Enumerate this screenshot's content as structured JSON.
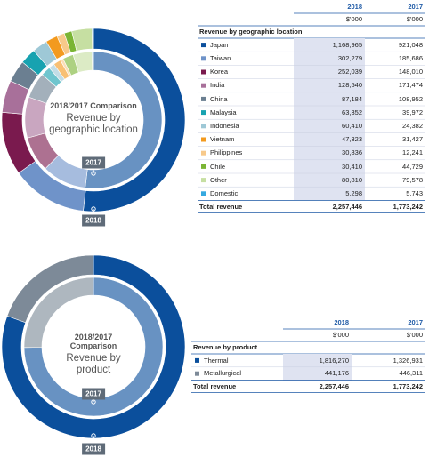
{
  "chart_data": [
    {
      "type": "donut",
      "title": "2018/2017 Comparison",
      "subtitle": "Revenue by geographic location",
      "table_heading": "Revenue by geographic location",
      "total_label": "Total revenue",
      "categories": [
        "Japan",
        "Taiwan",
        "Korea",
        "India",
        "China",
        "Malaysia",
        "Indonesia",
        "Vietnam",
        "Philippines",
        "Chile",
        "Other",
        "Domestic"
      ],
      "colors": [
        "#0b4f9c",
        "#6f93c9",
        "#7a1a4e",
        "#a8709a",
        "#6b7f91",
        "#17a2b0",
        "#9ec8d6",
        "#f39a1e",
        "#f7c98a",
        "#7ab534",
        "#c6dfa2",
        "#35a9e0"
      ],
      "series": [
        {
          "name": "2018",
          "unit": "$'000",
          "total": "2,257,446",
          "values": [
            1168965,
            302279,
            252039,
            128540,
            87184,
            63352,
            60410,
            47323,
            30836,
            30410,
            80810,
            5298
          ],
          "value_labels": [
            "1,168,965",
            "302,279",
            "252,039",
            "128,540",
            "87,184",
            "63,352",
            "60,410",
            "47,323",
            "30,836",
            "30,410",
            "80,810",
            "5,298"
          ]
        },
        {
          "name": "2017",
          "unit": "$'000",
          "total": "1,773,242",
          "values": [
            921048,
            185686,
            148010,
            171474,
            108952,
            39972,
            24382,
            31427,
            12241,
            44729,
            79578,
            5743
          ],
          "value_labels": [
            "921,048",
            "185,686",
            "148,010",
            "171,474",
            "108,952",
            "39,972",
            "24,382",
            "31,427",
            "12,241",
            "44,729",
            "79,578",
            "5,743"
          ]
        }
      ]
    },
    {
      "type": "donut",
      "title": "2018/2017 Comparison",
      "subtitle": "Revenue by product",
      "table_heading": "Revenue by product",
      "total_label": "Total revenue",
      "categories": [
        "Thermal",
        "Metallurgical"
      ],
      "colors": [
        "#0b4f9c",
        "#7d8a98"
      ],
      "series": [
        {
          "name": "2018",
          "unit": "$'000",
          "total": "2,257,446",
          "values": [
            1816270,
            441176
          ],
          "value_labels": [
            "1,816,270",
            "441,176"
          ]
        },
        {
          "name": "2017",
          "unit": "$'000",
          "total": "1,773,242",
          "values": [
            1326931,
            446311
          ],
          "value_labels": [
            "1,326,931",
            "446,311"
          ]
        }
      ]
    }
  ]
}
